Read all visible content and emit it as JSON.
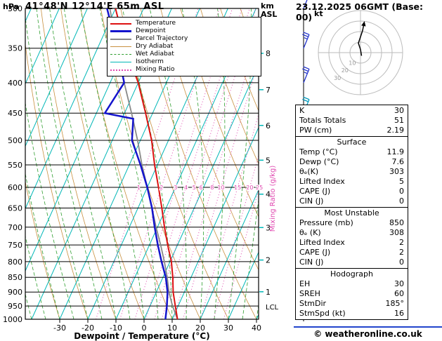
{
  "header": {
    "pressure_unit": "hPa",
    "station": "41°48'N 12°14'E 65m ASL",
    "datetime": "23.12.2025 06GMT (Base: 00)",
    "alt_unit_top": "km",
    "alt_unit_bottom": "ASL"
  },
  "chart_data": {
    "type": "skewt_logp",
    "xlabel": "Dewpoint / Temperature (°C)",
    "x_ticks": [
      -30,
      -20,
      -10,
      0,
      10,
      20,
      30,
      40
    ],
    "pressure_ticks": [
      300,
      350,
      400,
      450,
      500,
      550,
      600,
      650,
      700,
      750,
      800,
      850,
      900,
      950,
      1000
    ],
    "pressure_range": [
      300,
      1000
    ],
    "km_scale": [
      {
        "km": 8,
        "p": 357
      },
      {
        "km": 7,
        "p": 411
      },
      {
        "km": 6,
        "p": 472
      },
      {
        "km": 5,
        "p": 540
      },
      {
        "km": 4,
        "p": 616
      },
      {
        "km": 3,
        "p": 701
      },
      {
        "km": 2,
        "p": 795
      },
      {
        "km": 1,
        "p": 899
      }
    ],
    "lcl_label": "LCL",
    "lcl_pressure": 952,
    "mixing_ratio_label": "Mixing Ratio (g/kg)",
    "mixing_ratio_values": [
      1,
      2,
      3,
      4,
      5,
      6,
      8,
      10,
      15,
      20,
      25
    ],
    "mixing_ratio_label_pressure": 600,
    "isotherms": {
      "start": -100,
      "end": 40,
      "step": 10
    },
    "dry_adiabats": {
      "start": -30,
      "end": 110,
      "step": 10
    },
    "wet_adiabats": {
      "start": -40,
      "end": 40,
      "step": 5
    },
    "series": {
      "temperature": {
        "name": "Temperature",
        "color": "#dd1111",
        "width": 2,
        "points": [
          [
            1000,
            11.9
          ],
          [
            950,
            9
          ],
          [
            900,
            6
          ],
          [
            850,
            3.5
          ],
          [
            800,
            0.5
          ],
          [
            750,
            -3.5
          ],
          [
            700,
            -7.5
          ],
          [
            650,
            -11.5
          ],
          [
            600,
            -16
          ],
          [
            550,
            -21
          ],
          [
            500,
            -26
          ],
          [
            450,
            -32.5
          ],
          [
            400,
            -40
          ],
          [
            350,
            -50
          ],
          [
            300,
            -60
          ]
        ]
      },
      "dewpoint": {
        "name": "Dewpoint",
        "color": "#1414cc",
        "width": 2.5,
        "points": [
          [
            1000,
            7.6
          ],
          [
            950,
            6
          ],
          [
            900,
            4
          ],
          [
            850,
            1
          ],
          [
            800,
            -3
          ],
          [
            750,
            -7
          ],
          [
            700,
            -11
          ],
          [
            650,
            -15
          ],
          [
            600,
            -20
          ],
          [
            550,
            -26
          ],
          [
            500,
            -33
          ],
          [
            460,
            -36
          ],
          [
            450,
            -47
          ],
          [
            400,
            -45
          ],
          [
            350,
            -53
          ],
          [
            300,
            -63
          ]
        ]
      },
      "parcel": {
        "name": "Parcel Trajectory",
        "color": "#888888",
        "width": 1.8,
        "points": [
          [
            1000,
            11.9
          ],
          [
            950,
            8
          ],
          [
            900,
            4.5
          ],
          [
            850,
            1.5
          ],
          [
            800,
            -2
          ],
          [
            750,
            -6
          ],
          [
            700,
            -10.5
          ],
          [
            650,
            -15
          ],
          [
            600,
            -20
          ],
          [
            550,
            -25.5
          ],
          [
            500,
            -31
          ],
          [
            450,
            -37.5
          ],
          [
            400,
            -45
          ],
          [
            350,
            -53
          ],
          [
            300,
            -62
          ]
        ]
      }
    },
    "legend": [
      {
        "label": "Temperature",
        "color": "#dd1111",
        "dash": "solid",
        "width": 2
      },
      {
        "label": "Dewpoint",
        "color": "#1414cc",
        "dash": "solid",
        "width": 3
      },
      {
        "label": "Parcel Trajectory",
        "color": "#888888",
        "dash": "solid",
        "width": 2
      },
      {
        "label": "Dry Adiabat",
        "color": "#c89040",
        "dash": "solid",
        "width": 1
      },
      {
        "label": "Wet Adiabat",
        "color": "#2f9e2f",
        "dash": "dashed",
        "width": 1
      },
      {
        "label": "Isotherm",
        "color": "#00b7b7",
        "dash": "solid",
        "width": 1
      },
      {
        "label": "Mixing Ratio",
        "color": "#e048b0",
        "dash": "dotted",
        "width": 2
      }
    ],
    "background_colors": {
      "dry_adiabat": "#c89040",
      "wet_adiabat": "#2f9e2f",
      "isotherm": "#00b7b7",
      "mixing_ratio": "#e048b0",
      "grid": "#000000"
    },
    "wind_barbs": [
      {
        "p": 300,
        "speed": 30,
        "color": "#2233cc"
      },
      {
        "p": 350,
        "speed": 25,
        "color": "#2233cc"
      },
      {
        "p": 400,
        "speed": 25,
        "color": "#2233cc"
      },
      {
        "p": 450,
        "speed": 20,
        "color": "#0099bb"
      },
      {
        "p": 500,
        "speed": 20,
        "color": "#0099bb"
      },
      {
        "p": 550,
        "speed": 15,
        "color": "#0099bb"
      },
      {
        "p": 600,
        "speed": 15,
        "color": "#00aa66"
      },
      {
        "p": 650,
        "speed": 15,
        "color": "#00aa66"
      },
      {
        "p": 700,
        "speed": 10,
        "color": "#22aa22"
      },
      {
        "p": 750,
        "speed": 10,
        "color": "#22aa22"
      },
      {
        "p": 800,
        "speed": 10,
        "color": "#22aa22"
      },
      {
        "p": 850,
        "speed": 15,
        "color": "#22aa22"
      },
      {
        "p": 900,
        "speed": 10,
        "color": "#55bb22"
      },
      {
        "p": 950,
        "speed": 10,
        "color": "#88bb22"
      },
      {
        "p": 1000,
        "speed": 5,
        "color": "#cccc00"
      }
    ]
  },
  "hodograph": {
    "unit": "kt",
    "rings": [
      10,
      20,
      30,
      40
    ],
    "ring_labels": [
      10,
      20,
      30
    ],
    "trace_uv": [
      [
        1,
        -3
      ],
      [
        0,
        3
      ],
      [
        -2,
        9
      ],
      [
        0,
        15
      ],
      [
        2,
        21
      ],
      [
        3,
        26
      ]
    ]
  },
  "stats_boxes": [
    {
      "title": "",
      "rows": [
        [
          "K",
          "30"
        ],
        [
          "Totals Totals",
          "51"
        ],
        [
          "PW (cm)",
          "2.19"
        ]
      ]
    },
    {
      "title": "Surface",
      "rows": [
        [
          "Temp (°C)",
          "11.9"
        ],
        [
          "Dewp (°C)",
          "7.6"
        ],
        [
          "θₑ(K)",
          "303"
        ],
        [
          "Lifted Index",
          "5"
        ],
        [
          "CAPE (J)",
          "0"
        ],
        [
          "CIN (J)",
          "0"
        ]
      ]
    },
    {
      "title": "Most Unstable",
      "rows": [
        [
          "Pressure (mb)",
          "850"
        ],
        [
          "θₑ (K)",
          "308"
        ],
        [
          "Lifted Index",
          "2"
        ],
        [
          "CAPE (J)",
          "2"
        ],
        [
          "CIN (J)",
          "0"
        ]
      ]
    },
    {
      "title": "Hodograph",
      "rows": [
        [
          "EH",
          "30"
        ],
        [
          "SREH",
          "60"
        ],
        [
          "StmDir",
          "185°"
        ],
        [
          "StmSpd (kt)",
          "16"
        ]
      ]
    }
  ],
  "footer": {
    "copyright": "© weatheronline.co.uk"
  }
}
